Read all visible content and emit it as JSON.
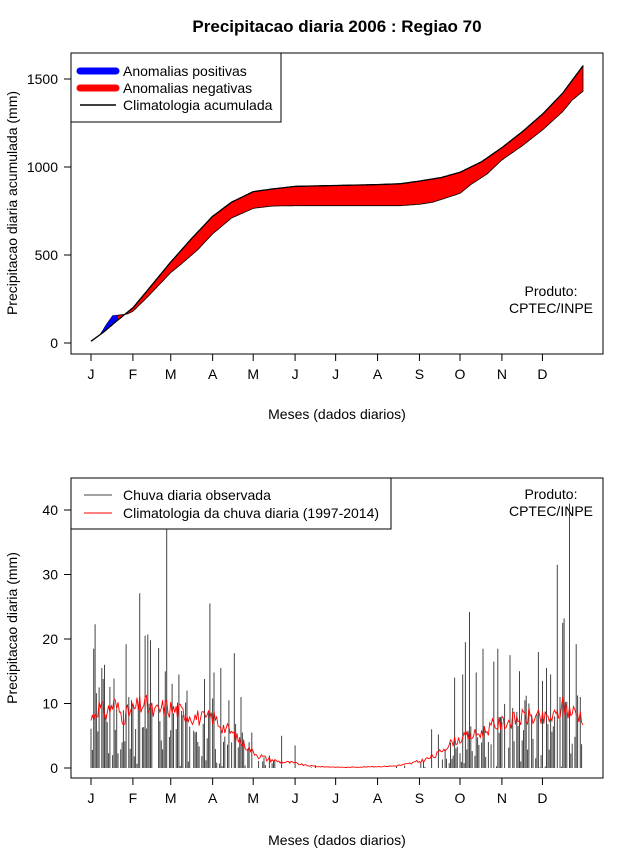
{
  "title": "Precipitacao diaria 2006 : Regiao 70",
  "product_label": "Produto:",
  "product_name": "CPTEC/INPE",
  "chart_data": [
    {
      "type": "area",
      "name": "accumulated",
      "xlabel": "Meses (dados diarios)",
      "ylabel": "Precipitacao diaria acumulada (mm)",
      "x_range": [
        1,
        365
      ],
      "ylim": [
        0,
        1580
      ],
      "yticks": [
        0,
        500,
        1000,
        1500
      ],
      "month_ticks": [
        "J",
        "F",
        "M",
        "A",
        "M",
        "J",
        "J",
        "A",
        "S",
        "O",
        "N",
        "D"
      ],
      "month_start_days": [
        1,
        32,
        60,
        91,
        121,
        152,
        182,
        213,
        244,
        274,
        305,
        335
      ],
      "legend": [
        {
          "label": "Anomalias positivas",
          "color": "#0000ff"
        },
        {
          "label": "Anomalias negativas",
          "color": "#ff0000"
        },
        {
          "label": "Climatologia acumulada",
          "color": "#000000"
        }
      ],
      "climatology_points": [
        [
          1,
          10
        ],
        [
          10,
          60
        ],
        [
          20,
          125
        ],
        [
          32,
          200
        ],
        [
          45,
          320
        ],
        [
          60,
          460
        ],
        [
          75,
          590
        ],
        [
          91,
          720
        ],
        [
          105,
          800
        ],
        [
          121,
          860
        ],
        [
          135,
          875
        ],
        [
          152,
          890
        ],
        [
          182,
          895
        ],
        [
          213,
          900
        ],
        [
          230,
          905
        ],
        [
          244,
          920
        ],
        [
          260,
          940
        ],
        [
          274,
          970
        ],
        [
          290,
          1030
        ],
        [
          305,
          1110
        ],
        [
          320,
          1200
        ],
        [
          335,
          1300
        ],
        [
          350,
          1420
        ],
        [
          365,
          1575
        ]
      ],
      "observed_points": [
        [
          1,
          10
        ],
        [
          8,
          50
        ],
        [
          12,
          100
        ],
        [
          17,
          155
        ],
        [
          21,
          158
        ],
        [
          28,
          165
        ],
        [
          32,
          180
        ],
        [
          42,
          255
        ],
        [
          52,
          335
        ],
        [
          60,
          400
        ],
        [
          68,
          450
        ],
        [
          80,
          530
        ],
        [
          91,
          620
        ],
        [
          105,
          710
        ],
        [
          121,
          765
        ],
        [
          135,
          778
        ],
        [
          152,
          780
        ],
        [
          182,
          780
        ],
        [
          213,
          780
        ],
        [
          230,
          780
        ],
        [
          244,
          788
        ],
        [
          254,
          800
        ],
        [
          266,
          830
        ],
        [
          274,
          850
        ],
        [
          282,
          900
        ],
        [
          294,
          960
        ],
        [
          305,
          1040
        ],
        [
          320,
          1120
        ],
        [
          335,
          1210
        ],
        [
          350,
          1315
        ],
        [
          357,
          1380
        ],
        [
          365,
          1430
        ]
      ]
    },
    {
      "type": "line",
      "name": "daily",
      "xlabel": "Meses (dados diarios)",
      "ylabel": "Precipitacao diaria (mm)",
      "x_range": [
        1,
        365
      ],
      "ylim": [
        0,
        43
      ],
      "yticks": [
        0,
        10,
        20,
        30,
        40
      ],
      "month_ticks": [
        "J",
        "F",
        "M",
        "A",
        "M",
        "J",
        "J",
        "A",
        "S",
        "O",
        "N",
        "D"
      ],
      "month_start_days": [
        1,
        32,
        60,
        91,
        121,
        152,
        182,
        213,
        244,
        274,
        305,
        335
      ],
      "legend": [
        {
          "label": "Chuva diaria observada",
          "color": "#444444"
        },
        {
          "label": "Climatologia da chuva diaria (1997-2014)",
          "color": "#ff0000"
        }
      ],
      "observed_peaks": [
        [
          3,
          18.5
        ],
        [
          4,
          22.3
        ],
        [
          7,
          12.5
        ],
        [
          9,
          15.5
        ],
        [
          10,
          13.8
        ],
        [
          11,
          16
        ],
        [
          17,
          2
        ],
        [
          27,
          19.2
        ],
        [
          31,
          10.5
        ],
        [
          37,
          27.1
        ],
        [
          41,
          20.5
        ],
        [
          43,
          20.7
        ],
        [
          45,
          19.8
        ],
        [
          51,
          18.6
        ],
        [
          56,
          15
        ],
        [
          57,
          42
        ],
        [
          62,
          8.5
        ],
        [
          66,
          14.5
        ],
        [
          72,
          12
        ],
        [
          78,
          5.5
        ],
        [
          85,
          13.8
        ],
        [
          89,
          25.5
        ],
        [
          92,
          14.8
        ],
        [
          97,
          15.5
        ],
        [
          103,
          10.5
        ],
        [
          107,
          17.8
        ],
        [
          112,
          11
        ],
        [
          118,
          4
        ],
        [
          120,
          5.5
        ],
        [
          128,
          1
        ],
        [
          142,
          5
        ],
        [
          152,
          3.5
        ],
        [
          253,
          6
        ],
        [
          258,
          5.2
        ],
        [
          270,
          14
        ],
        [
          276,
          14.5
        ],
        [
          278,
          19.5
        ],
        [
          281,
          24.2
        ],
        [
          286,
          14.8
        ],
        [
          291,
          18.5
        ],
        [
          299,
          16.5
        ],
        [
          302,
          18.5
        ],
        [
          311,
          17.5
        ],
        [
          318,
          15
        ],
        [
          322,
          10.5
        ],
        [
          325,
          10
        ],
        [
          332,
          18
        ],
        [
          335,
          13.5
        ],
        [
          338,
          15.5
        ],
        [
          341,
          14.5
        ],
        [
          346,
          31.5
        ],
        [
          348,
          11
        ],
        [
          350,
          22.5
        ],
        [
          351,
          23.2
        ],
        [
          355,
          41
        ],
        [
          360,
          19.2
        ],
        [
          363,
          11
        ]
      ],
      "climatology_points": [
        [
          1,
          7.5
        ],
        [
          6,
          9.5
        ],
        [
          12,
          8.5
        ],
        [
          18,
          10
        ],
        [
          25,
          8
        ],
        [
          32,
          9
        ],
        [
          40,
          10
        ],
        [
          48,
          8.5
        ],
        [
          56,
          9.5
        ],
        [
          62,
          9
        ],
        [
          70,
          8.5
        ],
        [
          78,
          8
        ],
        [
          85,
          7.5
        ],
        [
          91,
          8
        ],
        [
          98,
          6.5
        ],
        [
          105,
          5.5
        ],
        [
          112,
          4
        ],
        [
          118,
          3
        ],
        [
          123,
          2.2
        ],
        [
          130,
          1.5
        ],
        [
          140,
          1
        ],
        [
          150,
          0.8
        ],
        [
          160,
          0.4
        ],
        [
          170,
          0.2
        ],
        [
          190,
          0.1
        ],
        [
          210,
          0.2
        ],
        [
          225,
          0.3
        ],
        [
          235,
          0.6
        ],
        [
          244,
          1
        ],
        [
          250,
          1.4
        ],
        [
          256,
          2
        ],
        [
          262,
          3
        ],
        [
          268,
          4
        ],
        [
          274,
          4.5
        ],
        [
          282,
          5
        ],
        [
          290,
          5.5
        ],
        [
          298,
          6.5
        ],
        [
          305,
          7
        ],
        [
          315,
          7.5
        ],
        [
          325,
          8
        ],
        [
          335,
          7.5
        ],
        [
          345,
          8
        ],
        [
          350,
          9.5
        ],
        [
          355,
          9
        ],
        [
          360,
          8.5
        ],
        [
          365,
          8
        ]
      ]
    }
  ]
}
